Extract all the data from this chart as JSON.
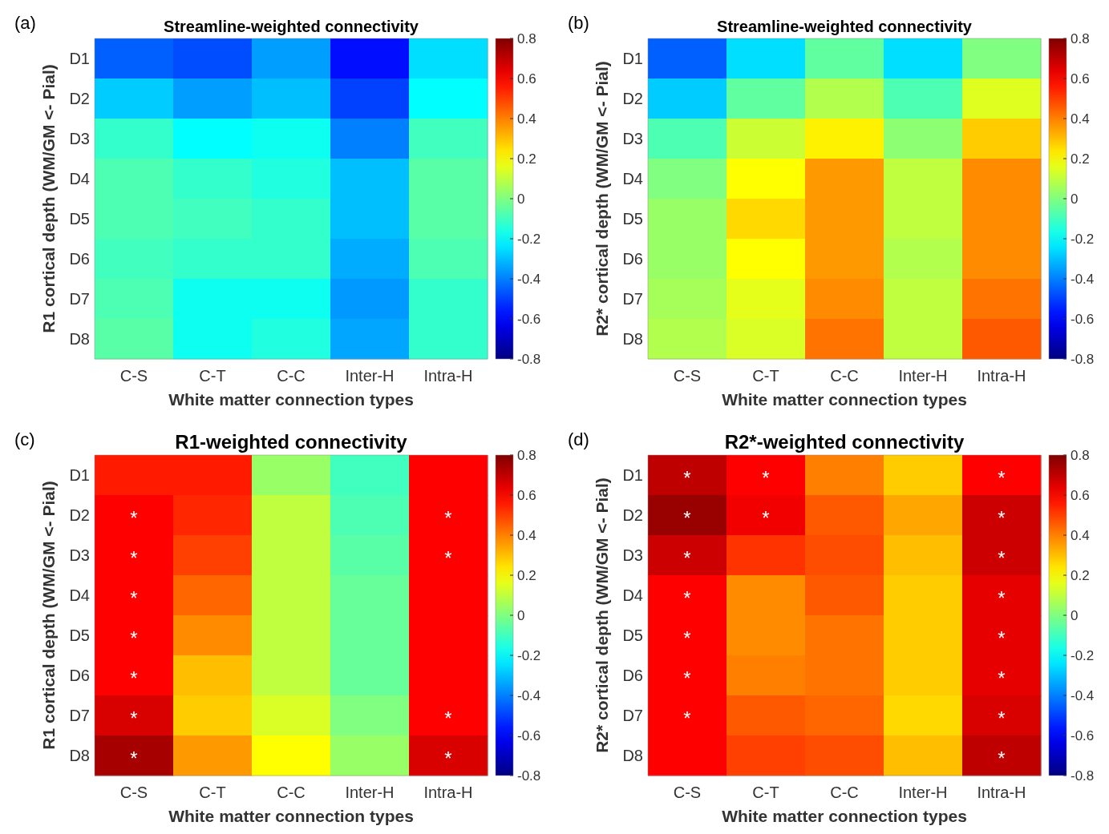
{
  "chart_data": [
    {
      "type": "heatmap",
      "title": "Streamline-weighted connectivity",
      "xlabel": "White matter connection types",
      "ylabel": "R1 cortical depth (WM/GM <- Pial)",
      "annotations": [
        "(a)"
      ],
      "categories": [
        "C-S",
        "C-T",
        "C-C",
        "Inter-H",
        "Intra-H"
      ],
      "y_categories": [
        "D1",
        "D2",
        "D3",
        "D4",
        "D5",
        "D6",
        "D7",
        "D8"
      ],
      "cells": [
        [
          -0.45,
          -0.48,
          -0.35,
          -0.58,
          -0.25
        ],
        [
          -0.28,
          -0.35,
          -0.3,
          -0.5,
          -0.2
        ],
        [
          -0.12,
          -0.2,
          -0.18,
          -0.4,
          -0.1
        ],
        [
          -0.08,
          -0.12,
          -0.15,
          -0.3,
          -0.06
        ],
        [
          -0.08,
          -0.1,
          -0.12,
          -0.3,
          -0.06
        ],
        [
          -0.1,
          -0.12,
          -0.12,
          -0.33,
          -0.08
        ],
        [
          -0.08,
          -0.18,
          -0.18,
          -0.36,
          -0.12
        ],
        [
          -0.06,
          -0.18,
          -0.15,
          -0.34,
          -0.12
        ]
      ],
      "clim": [
        -0.8,
        0.8
      ],
      "cticks": [
        -0.8,
        -0.6,
        -0.4,
        -0.2,
        0,
        0.2,
        0.4,
        0.6,
        0.8
      ]
    },
    {
      "type": "heatmap",
      "title": "Streamline-weighted connectivity",
      "xlabel": "White matter connection types",
      "ylabel": "R2* cortical depth (WM/GM <- Pial)",
      "annotations": [
        "(b)"
      ],
      "categories": [
        "C-S",
        "C-T",
        "C-C",
        "Inter-H",
        "Intra-H"
      ],
      "y_categories": [
        "D1",
        "D2",
        "D3",
        "D4",
        "D5",
        "D6",
        "D7",
        "D8"
      ],
      "cells": [
        [
          -0.45,
          -0.25,
          -0.05,
          -0.25,
          0
        ],
        [
          -0.28,
          -0.05,
          0.08,
          -0.08,
          0.15
        ],
        [
          -0.08,
          0.12,
          0.22,
          0.02,
          0.28
        ],
        [
          0,
          0.2,
          0.36,
          0.1,
          0.38
        ],
        [
          0.04,
          0.26,
          0.36,
          0.1,
          0.38
        ],
        [
          0.04,
          0.2,
          0.36,
          0.08,
          0.38
        ],
        [
          0.06,
          0.16,
          0.38,
          0.1,
          0.42
        ],
        [
          0.08,
          0.14,
          0.42,
          0.1,
          0.46
        ]
      ],
      "clim": [
        -0.8,
        0.8
      ],
      "cticks": [
        -0.8,
        -0.6,
        -0.4,
        -0.2,
        0,
        0.2,
        0.4,
        0.6,
        0.8
      ]
    },
    {
      "type": "heatmap",
      "title": "R1-weighted connectivity",
      "xlabel": "White matter connection types",
      "ylabel": "R1 cortical depth (WM/GM <- Pial)",
      "annotations": [
        "(c)"
      ],
      "categories": [
        "C-S",
        "C-T",
        "C-C",
        "Inter-H",
        "Intra-H"
      ],
      "y_categories": [
        "D1",
        "D2",
        "D3",
        "D4",
        "D5",
        "D6",
        "D7",
        "D8"
      ],
      "cells": [
        [
          0.56,
          0.56,
          0.04,
          -0.1,
          0.6
        ],
        [
          0.6,
          0.54,
          0.1,
          -0.08,
          0.6
        ],
        [
          0.6,
          0.5,
          0.1,
          -0.06,
          0.6
        ],
        [
          0.6,
          0.44,
          0.1,
          -0.04,
          0.6
        ],
        [
          0.6,
          0.38,
          0.1,
          -0.04,
          0.6
        ],
        [
          0.6,
          0.3,
          0.1,
          -0.04,
          0.6
        ],
        [
          0.66,
          0.28,
          0.14,
          0,
          0.6
        ],
        [
          0.74,
          0.36,
          0.2,
          0.04,
          0.66
        ]
      ],
      "cell_labels": [
        [
          null,
          null,
          null,
          null,
          null
        ],
        [
          "*",
          null,
          null,
          null,
          "*"
        ],
        [
          "*",
          null,
          null,
          null,
          "*"
        ],
        [
          "*",
          null,
          null,
          null,
          null
        ],
        [
          "*",
          null,
          null,
          null,
          null
        ],
        [
          "*",
          null,
          null,
          null,
          null
        ],
        [
          "*",
          null,
          null,
          null,
          "*"
        ],
        [
          "*",
          null,
          null,
          null,
          "*"
        ]
      ],
      "clim": [
        -0.8,
        0.8
      ],
      "cticks": [
        -0.8,
        -0.6,
        -0.4,
        -0.2,
        0,
        0.2,
        0.4,
        0.6,
        0.8
      ]
    },
    {
      "type": "heatmap",
      "title": "R2*-weighted connectivity",
      "xlabel": "White matter connection types",
      "ylabel": "R2* cortical depth (WM/GM <- Pial)",
      "annotations": [
        "(d)"
      ],
      "categories": [
        "C-S",
        "C-T",
        "C-C",
        "Inter-H",
        "Intra-H"
      ],
      "y_categories": [
        "D1",
        "D2",
        "D3",
        "D4",
        "D5",
        "D6",
        "D7",
        "D8"
      ],
      "cells": [
        [
          0.7,
          0.6,
          0.4,
          0.28,
          0.6
        ],
        [
          0.76,
          0.62,
          0.46,
          0.34,
          0.68
        ],
        [
          0.68,
          0.52,
          0.48,
          0.3,
          0.68
        ],
        [
          0.6,
          0.38,
          0.46,
          0.28,
          0.64
        ],
        [
          0.6,
          0.38,
          0.42,
          0.28,
          0.64
        ],
        [
          0.6,
          0.4,
          0.42,
          0.28,
          0.64
        ],
        [
          0.6,
          0.46,
          0.44,
          0.26,
          0.66
        ],
        [
          0.6,
          0.5,
          0.48,
          0.3,
          0.7
        ]
      ],
      "cell_labels": [
        [
          "*",
          "*",
          null,
          null,
          "*"
        ],
        [
          "*",
          "*",
          null,
          null,
          "*"
        ],
        [
          "*",
          null,
          null,
          null,
          "*"
        ],
        [
          "*",
          null,
          null,
          null,
          "*"
        ],
        [
          "*",
          null,
          null,
          null,
          "*"
        ],
        [
          "*",
          null,
          null,
          null,
          "*"
        ],
        [
          "*",
          null,
          null,
          null,
          "*"
        ],
        [
          null,
          null,
          null,
          null,
          "*"
        ]
      ],
      "clim": [
        -0.8,
        0.8
      ],
      "cticks": [
        -0.8,
        -0.6,
        -0.4,
        -0.2,
        0,
        0.2,
        0.4,
        0.6,
        0.8
      ]
    }
  ]
}
